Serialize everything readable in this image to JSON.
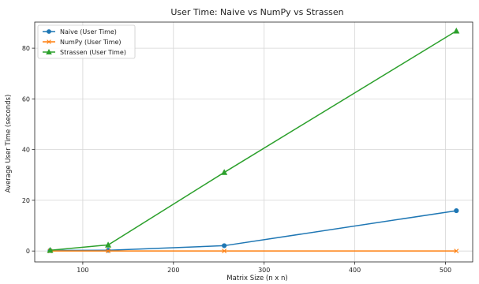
{
  "chart_data": {
    "type": "line",
    "title": "User Time: Naive vs NumPy vs Strassen",
    "xlabel": "Matrix Size (n x n)",
    "ylabel": "Average User Time (seconds)",
    "x": [
      64,
      128,
      256,
      512
    ],
    "xlim": [
      47,
      530
    ],
    "ylim": [
      -4.3,
      90.3
    ],
    "xticks": [
      100,
      200,
      300,
      400,
      500
    ],
    "yticks": [
      0,
      20,
      40,
      60,
      80
    ],
    "grid": true,
    "legend_position": "top-left",
    "series": [
      {
        "name": "Naive (User Time)",
        "values": [
          0.2,
          0.3,
          2.1,
          15.9
        ],
        "color": "#1f77b4",
        "marker": "circle"
      },
      {
        "name": "NumPy (User Time)",
        "values": [
          0.0,
          0.0,
          0.0,
          0.0
        ],
        "color": "#ff7f0e",
        "marker": "x"
      },
      {
        "name": "Strassen (User Time)",
        "values": [
          0.3,
          2.4,
          31.0,
          86.8
        ],
        "color": "#2ca02c",
        "marker": "triangle"
      }
    ]
  }
}
